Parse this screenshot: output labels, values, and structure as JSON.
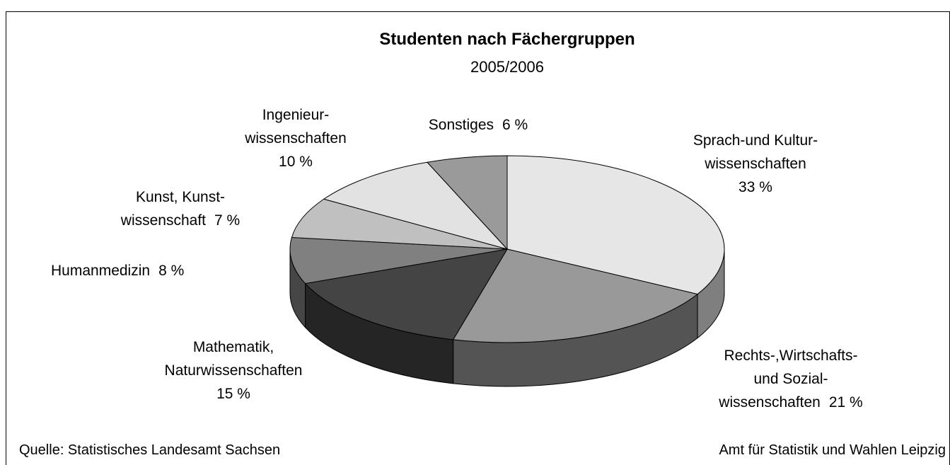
{
  "chart_data": {
    "type": "pie3d",
    "title": "Studenten nach Fächergruppen",
    "subtitle": "2005/2006",
    "categories": [
      "Sprach-und Kultur-\nwissenschaften",
      "Rechts-,Wirtschafts-\nund Sozial-\nwissenschaften",
      "Mathematik,\nNaturwissenschaften",
      "Humanmedizin",
      "Kunst, Kunst-\nwissenschaft",
      "Ingenieur-\nwissenschaften",
      "Sonstiges"
    ],
    "values": [
      33,
      21,
      15,
      8,
      7,
      10,
      6
    ],
    "value_labels": [
      "33 %",
      "21 %",
      "15 %",
      "8 %",
      "7 %",
      "10 %",
      "6 %"
    ],
    "colors": [
      "#e6e6e6",
      "#999999",
      "#444444",
      "#808080",
      "#c0c0c0",
      "#e2e2e2",
      "#9a9a9a"
    ],
    "source": "Quelle: Statistisches Landesamt Sachsen",
    "publisher": "Amt für Statistik und Wahlen Leipzig"
  }
}
